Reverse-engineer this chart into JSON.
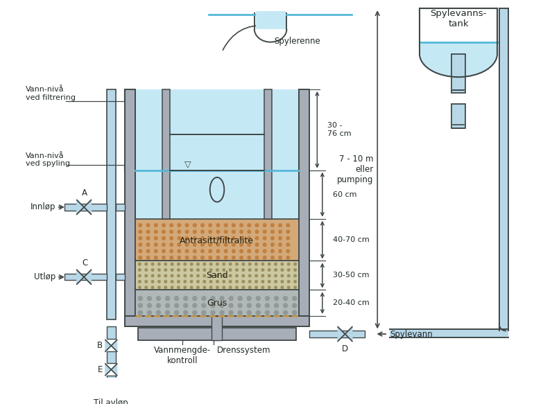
{
  "bg_color": "#ffffff",
  "water_color": "#c5e8f5",
  "water_line_color": "#55b8d8",
  "anthracite_color": "#d4a97a",
  "sand_color": "#ccc8a0",
  "gravel_color": "#b0b8b8",
  "frame_color": "#a8aeb8",
  "line_color": "#404848",
  "pipe_fill": "#b8d8e8",
  "text_color": "#202828",
  "dim_color": "#404848",
  "orange_dashed": "#cc9944",
  "labels": {
    "vann_filtrering": "Vann-nivå\nved filtrering",
    "vann_spyling": "Vann-nivå\nved spyling",
    "innlop": "Innløp",
    "utlop": "Utløp",
    "spylerenne": "Spylerenne",
    "spylevannstank": "Spylevanns-\ntank",
    "height_label": "7 - 10 m\neller\npumping",
    "antrasitt": "Antrasitt/filtralite",
    "sand": "Sand",
    "grus": "Grus",
    "vannmengde": "Vannmengde-\nkontroll",
    "drenssystem": "Drenssystem",
    "spylevann": "Spylevann",
    "til_avlop": "Til avløp",
    "dim_30_76": "30 -\n76 cm",
    "dim_60": "60 cm",
    "dim_40_70": "40-70 cm",
    "dim_30_50": "30-50 cm",
    "dim_20_40": "20-40 cm",
    "label_A": "A",
    "label_B": "B",
    "label_C": "C",
    "label_D": "D",
    "label_E": "E"
  }
}
